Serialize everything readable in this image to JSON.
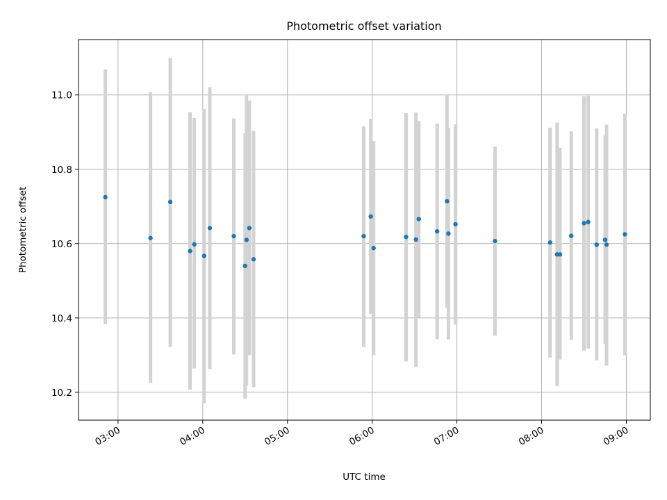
{
  "chart_data": {
    "type": "scatter",
    "title": "Photometric offset variation",
    "xlabel": "UTC time",
    "ylabel": "Photometric offset",
    "x_ticks": [
      "03:00",
      "04:00",
      "05:00",
      "06:00",
      "07:00",
      "08:00",
      "09:00"
    ],
    "y_ticks": [
      "10.2",
      "10.4",
      "10.6",
      "10.8",
      "11.0"
    ],
    "y_tick_values": [
      10.2,
      10.4,
      10.6,
      10.8,
      11.0
    ],
    "xlim": [
      "02:32",
      "09:17"
    ],
    "ylim": [
      10.125,
      11.149
    ],
    "grid": true,
    "colors": {
      "point": "#1f77b4",
      "errorbar": "#d3d3d3",
      "grid": "#b0b0b0"
    },
    "series": [
      {
        "points": [
          {
            "time": "02:51",
            "value": 10.725,
            "err_low": 10.383,
            "err_high": 11.069
          },
          {
            "time": "03:23",
            "value": 10.615,
            "err_low": 10.225,
            "err_high": 11.008
          },
          {
            "time": "03:37",
            "value": 10.712,
            "err_low": 10.322,
            "err_high": 11.1
          },
          {
            "time": "03:51",
            "value": 10.58,
            "err_low": 10.207,
            "err_high": 10.954
          },
          {
            "time": "03:54",
            "value": 10.598,
            "err_low": 10.264,
            "err_high": 10.938
          },
          {
            "time": "04:01",
            "value": 10.567,
            "err_low": 10.17,
            "err_high": 10.962
          },
          {
            "time": "04:05",
            "value": 10.642,
            "err_low": 10.262,
            "err_high": 11.021
          },
          {
            "time": "04:22",
            "value": 10.62,
            "err_low": 10.302,
            "err_high": 10.937
          },
          {
            "time": "04:30",
            "value": 10.54,
            "err_low": 10.183,
            "err_high": 10.897
          },
          {
            "time": "04:31",
            "value": 10.61,
            "err_low": 10.218,
            "err_high": 11.002
          },
          {
            "time": "04:33",
            "value": 10.642,
            "err_low": 10.3,
            "err_high": 10.985
          },
          {
            "time": "04:36",
            "value": 10.558,
            "err_low": 10.213,
            "err_high": 10.903
          },
          {
            "time": "05:54",
            "value": 10.62,
            "err_low": 10.322,
            "err_high": 10.916
          },
          {
            "time": "05:59",
            "value": 10.673,
            "err_low": 10.411,
            "err_high": 10.936
          },
          {
            "time": "06:01",
            "value": 10.588,
            "err_low": 10.3,
            "err_high": 10.876
          },
          {
            "time": "06:24",
            "value": 10.618,
            "err_low": 10.283,
            "err_high": 10.951
          },
          {
            "time": "06:31",
            "value": 10.611,
            "err_low": 10.268,
            "err_high": 10.953
          },
          {
            "time": "06:33",
            "value": 10.666,
            "err_low": 10.401,
            "err_high": 10.93
          },
          {
            "time": "06:46",
            "value": 10.633,
            "err_low": 10.343,
            "err_high": 10.923
          },
          {
            "time": "06:53",
            "value": 10.714,
            "err_low": 10.427,
            "err_high": 11.002
          },
          {
            "time": "06:54",
            "value": 10.627,
            "err_low": 10.342,
            "err_high": 10.911
          },
          {
            "time": "06:59",
            "value": 10.652,
            "err_low": 10.382,
            "err_high": 10.921
          },
          {
            "time": "07:27",
            "value": 10.607,
            "err_low": 10.352,
            "err_high": 10.861
          },
          {
            "time": "08:06",
            "value": 10.603,
            "err_low": 10.293,
            "err_high": 10.912
          },
          {
            "time": "08:11",
            "value": 10.571,
            "err_low": 10.216,
            "err_high": 10.926
          },
          {
            "time": "08:13",
            "value": 10.571,
            "err_low": 10.288,
            "err_high": 10.858
          },
          {
            "time": "08:21",
            "value": 10.621,
            "err_low": 10.341,
            "err_high": 10.902
          },
          {
            "time": "08:30",
            "value": 10.655,
            "err_low": 10.312,
            "err_high": 10.997
          },
          {
            "time": "08:33",
            "value": 10.658,
            "err_low": 10.318,
            "err_high": 10.998
          },
          {
            "time": "08:39",
            "value": 10.597,
            "err_low": 10.286,
            "err_high": 10.91
          },
          {
            "time": "08:45",
            "value": 10.61,
            "err_low": 10.33,
            "err_high": 10.891
          },
          {
            "time": "08:46",
            "value": 10.597,
            "err_low": 10.272,
            "err_high": 10.92
          },
          {
            "time": "08:59",
            "value": 10.625,
            "err_low": 10.299,
            "err_high": 10.95
          }
        ]
      }
    ]
  }
}
